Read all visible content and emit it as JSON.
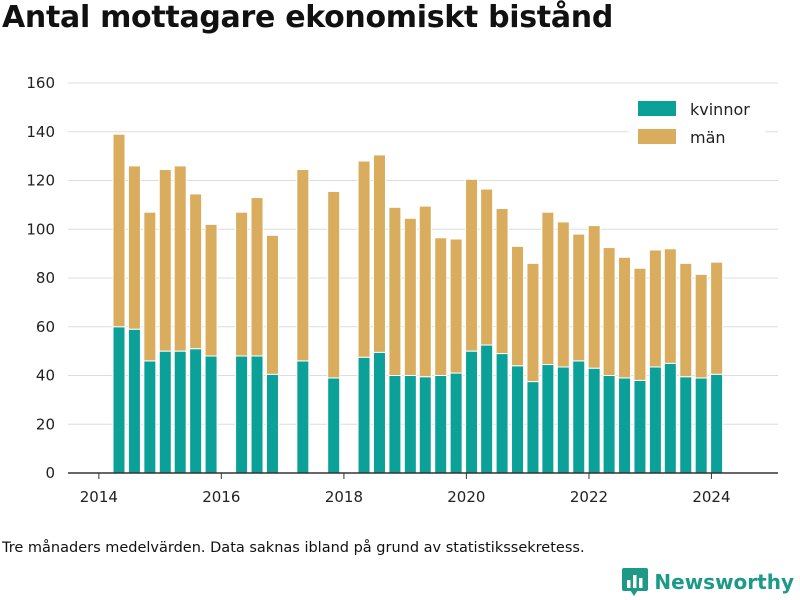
{
  "title": "Antal mottagare ekonomiskt bistånd",
  "footnote": "Tre månaders medelvärden. Data saknas ibland på grund av statistikssekretess.",
  "brand": {
    "name": "Newsworthy",
    "icon": "bar-chart-logo-icon"
  },
  "colors": {
    "kvinnor": "#0ba199",
    "man": "#d9ad5d",
    "grid": "#dddddd",
    "axis": "#333333"
  },
  "chart_data": {
    "type": "bar",
    "stacked": true,
    "xlim": [
      "2013-07-01",
      "2025-02-01"
    ],
    "ylim": [
      0,
      160
    ],
    "yticks": [
      0,
      20,
      40,
      60,
      80,
      100,
      120,
      140,
      160
    ],
    "xticks": [
      "2014",
      "2016",
      "2018",
      "2020",
      "2022",
      "2024"
    ],
    "grid": true,
    "legend_position": "top-right",
    "x": [
      "2014-05-01",
      "2014-08-01",
      "2014-11-01",
      "2015-02-01",
      "2015-05-01",
      "2015-08-01",
      "2015-11-01",
      "2016-02-01",
      "2016-05-01",
      "2016-08-01",
      "2016-11-01",
      "2017-02-01",
      "2017-05-01",
      "2017-08-01",
      "2017-11-01",
      "2018-02-01",
      "2018-05-01",
      "2018-08-01",
      "2018-11-01",
      "2019-02-01",
      "2019-05-01",
      "2019-08-01",
      "2019-11-01",
      "2020-02-01",
      "2020-05-01",
      "2020-08-01",
      "2020-11-01",
      "2021-02-01",
      "2021-05-01",
      "2021-08-01",
      "2021-11-01",
      "2022-02-01",
      "2022-05-01",
      "2022-08-01",
      "2022-11-01",
      "2023-02-01",
      "2023-05-01",
      "2023-08-01",
      "2023-11-01",
      "2024-02-01"
    ],
    "series": [
      {
        "name": "kvinnor",
        "values": [
          60,
          59,
          46,
          50,
          50,
          51,
          48,
          null,
          48,
          48,
          40.5,
          null,
          46,
          null,
          39,
          null,
          47.5,
          49.5,
          40,
          40,
          39.5,
          40,
          41,
          50,
          52.5,
          49,
          44,
          37.5,
          44.5,
          43.5,
          46,
          43,
          40,
          39,
          38,
          43.5,
          45,
          39.5,
          39,
          40.5
        ]
      },
      {
        "name": "män",
        "values": [
          79,
          67,
          61,
          74.5,
          76,
          63.5,
          54,
          null,
          59,
          65,
          57,
          null,
          78.5,
          null,
          76.5,
          null,
          80.5,
          81,
          69,
          64.5,
          70,
          56.5,
          55,
          70.5,
          64,
          59.5,
          49,
          48.5,
          62.5,
          59.5,
          52,
          58.5,
          52.5,
          49.5,
          46,
          48,
          47,
          46.5,
          42.5,
          46
        ]
      }
    ]
  }
}
